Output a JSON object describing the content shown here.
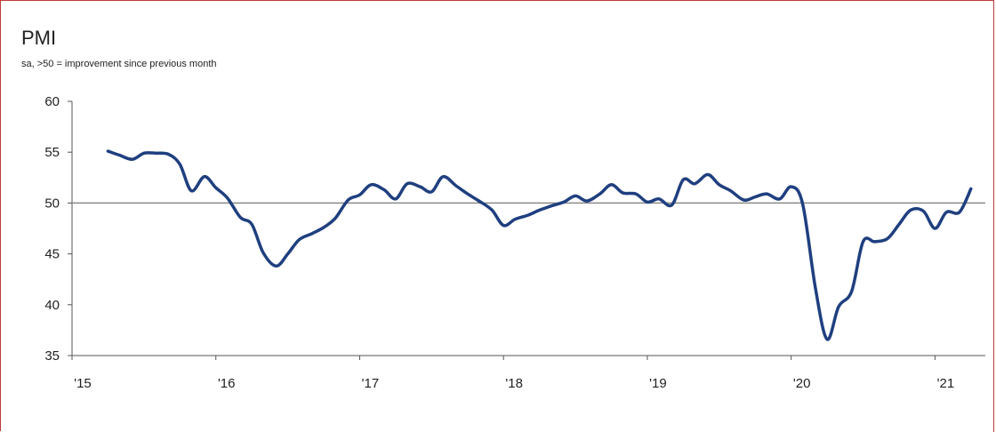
{
  "chart_data": {
    "type": "line",
    "title": "PMI",
    "subtitle": "sa, >50 = improvement since previous month",
    "xlabel": "",
    "ylabel": "",
    "xlim": [
      2015.0,
      2021.35
    ],
    "ylim": [
      35,
      60
    ],
    "y_ticks": [
      35,
      40,
      45,
      50,
      55,
      60
    ],
    "x_ticks": [
      {
        "value": 2015,
        "label": "'15"
      },
      {
        "value": 2016,
        "label": "'16"
      },
      {
        "value": 2017,
        "label": "'17"
      },
      {
        "value": 2018,
        "label": "'18"
      },
      {
        "value": 2019,
        "label": "'19"
      },
      {
        "value": 2020,
        "label": "'20"
      },
      {
        "value": 2021,
        "label": "'21"
      }
    ],
    "reference_line": 50,
    "line_color": "#1f3f7f",
    "reference_color": "#8a8a8a",
    "series": [
      {
        "points": [
          [
            2015.25,
            55.1
          ],
          [
            2015.33,
            54.7
          ],
          [
            2015.42,
            54.3
          ],
          [
            2015.5,
            54.9
          ],
          [
            2015.58,
            54.9
          ],
          [
            2015.67,
            54.8
          ],
          [
            2015.75,
            53.8
          ],
          [
            2015.83,
            51.2
          ],
          [
            2015.92,
            52.6
          ],
          [
            2016.0,
            51.5
          ],
          [
            2016.08,
            50.5
          ],
          [
            2016.17,
            48.6
          ],
          [
            2016.25,
            47.9
          ],
          [
            2016.33,
            45.1
          ],
          [
            2016.42,
            43.8
          ],
          [
            2016.5,
            45.0
          ],
          [
            2016.58,
            46.4
          ],
          [
            2016.67,
            47.0
          ],
          [
            2016.75,
            47.6
          ],
          [
            2016.83,
            48.5
          ],
          [
            2016.92,
            50.3
          ],
          [
            2017.0,
            50.8
          ],
          [
            2017.08,
            51.8
          ],
          [
            2017.17,
            51.3
          ],
          [
            2017.25,
            50.4
          ],
          [
            2017.33,
            51.9
          ],
          [
            2017.42,
            51.6
          ],
          [
            2017.5,
            51.1
          ],
          [
            2017.58,
            52.6
          ],
          [
            2017.67,
            51.7
          ],
          [
            2017.75,
            50.9
          ],
          [
            2017.83,
            50.2
          ],
          [
            2017.92,
            49.3
          ],
          [
            2018.0,
            47.8
          ],
          [
            2018.08,
            48.4
          ],
          [
            2018.17,
            48.8
          ],
          [
            2018.25,
            49.3
          ],
          [
            2018.33,
            49.7
          ],
          [
            2018.42,
            50.1
          ],
          [
            2018.5,
            50.7
          ],
          [
            2018.58,
            50.2
          ],
          [
            2018.67,
            50.9
          ],
          [
            2018.75,
            51.8
          ],
          [
            2018.83,
            51.0
          ],
          [
            2018.92,
            50.9
          ],
          [
            2019.0,
            50.1
          ],
          [
            2019.08,
            50.4
          ],
          [
            2019.17,
            49.8
          ],
          [
            2019.25,
            52.3
          ],
          [
            2019.33,
            51.9
          ],
          [
            2019.42,
            52.8
          ],
          [
            2019.5,
            51.8
          ],
          [
            2019.58,
            51.2
          ],
          [
            2019.67,
            50.3
          ],
          [
            2019.75,
            50.6
          ],
          [
            2019.83,
            50.9
          ],
          [
            2019.92,
            50.4
          ],
          [
            2020.0,
            51.6
          ],
          [
            2020.08,
            49.9
          ],
          [
            2020.17,
            41.5
          ],
          [
            2020.25,
            36.6
          ],
          [
            2020.33,
            39.8
          ],
          [
            2020.42,
            41.3
          ],
          [
            2020.5,
            46.2
          ],
          [
            2020.58,
            46.2
          ],
          [
            2020.67,
            46.5
          ],
          [
            2020.75,
            47.9
          ],
          [
            2020.83,
            49.3
          ],
          [
            2020.92,
            49.2
          ],
          [
            2021.0,
            47.5
          ],
          [
            2021.08,
            49.1
          ],
          [
            2021.17,
            49.1
          ],
          [
            2021.25,
            51.4
          ]
        ]
      }
    ]
  }
}
